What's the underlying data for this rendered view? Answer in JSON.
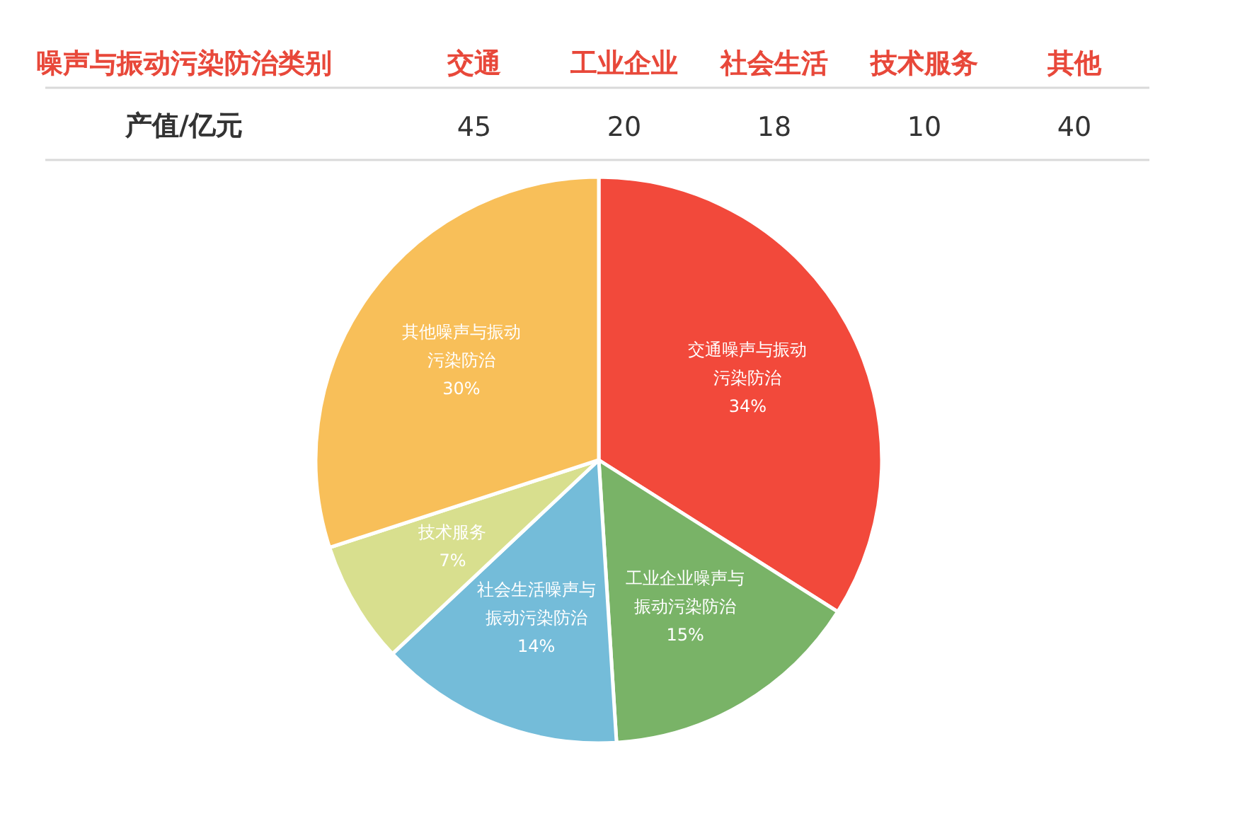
{
  "chart_data": [
    {
      "type": "other",
      "categories": [
        "交通",
        "工业企业",
        "社会生活",
        "技术服务",
        "其他"
      ],
      "values": [
        45,
        20,
        18,
        10,
        40
      ],
      "data_labels": true,
      "annotations": [
        "噪声与振动污染防治类别",
        "产值/亿元"
      ]
    },
    {
      "type": "pie",
      "categories": [
        "交通噪声与振动污染防治",
        "工业企业噪声与振动污染防治",
        "社会生活噪声与振动污染防治",
        "技术服务",
        "其他噪声与振动污染防治"
      ],
      "values": [
        34,
        15,
        14,
        7,
        30
      ],
      "colors": [
        "#f2493b",
        "#79b367",
        "#74bcd9",
        "#d8df8e",
        "#f8bf59"
      ],
      "value_labels": [
        "34%",
        "15%",
        "14%",
        "7%",
        "30%"
      ]
    }
  ]
}
